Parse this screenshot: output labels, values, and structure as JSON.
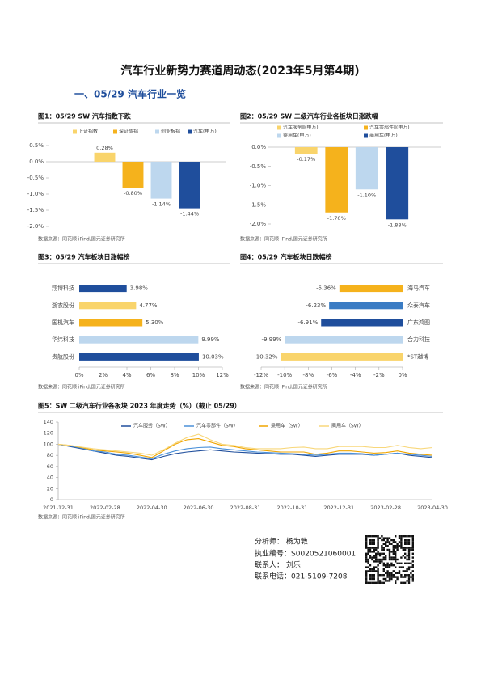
{
  "title": "汽车行业新势力赛道周动态(2023年5月第4期)",
  "section": "一、05/29 汽车行业一览",
  "chart_data": [
    {
      "type": "bar",
      "caption": "图1：05/29 SW 汽车指数下跌",
      "source": "数据来源：同花顺 iFind,国元证券研究所",
      "series": [
        {
          "name": "上证指数",
          "color": "#f9d46b",
          "values": [
            0.28
          ],
          "value_labels": [
            "0.28%"
          ]
        },
        {
          "name": "深证成指",
          "color": "#f5b21c",
          "values": [
            -0.8
          ],
          "value_labels": [
            "-0.80%"
          ]
        },
        {
          "name": "创业板指",
          "color": "#bdd7ee",
          "values": [
            -1.14
          ],
          "value_labels": [
            "-1.14%"
          ]
        },
        {
          "name": "汽车(申万)",
          "color": "#1f4e9c",
          "values": [
            -1.44
          ],
          "value_labels": [
            "-1.44%"
          ]
        }
      ],
      "ylim": [
        -2,
        0.5
      ],
      "yticks": [
        {
          "value": 0.5,
          "label": "0.5%"
        },
        {
          "value": 0,
          "label": "0.0%"
        },
        {
          "value": -0.5,
          "label": "-0.5%"
        },
        {
          "value": -1,
          "label": "-1.0%"
        },
        {
          "value": -1.5,
          "label": "-1.5%"
        },
        {
          "value": -2,
          "label": "-2.0%"
        }
      ]
    },
    {
      "type": "bar",
      "caption": "图2：05/29 SW 二级汽车行业各板块日涨跌幅",
      "source": "数据来源：同花顺 iFind,国元证券研究所",
      "series": [
        {
          "name": "汽车服务Ⅱ(申万)",
          "color": "#f9d46b",
          "values": [
            -0.17
          ],
          "value_labels": [
            "-0.17%"
          ]
        },
        {
          "name": "汽车零部件Ⅱ(申万)",
          "color": "#f5b21c",
          "values": [
            -1.7
          ],
          "value_labels": [
            "-1.70%"
          ]
        },
        {
          "name": "乘用车(申万)",
          "color": "#bdd7ee",
          "values": [
            -1.1
          ],
          "value_labels": [
            "-1.10%"
          ]
        },
        {
          "name": "商用车(申万)",
          "color": "#1f4e9c",
          "values": [
            -1.88
          ],
          "value_labels": [
            "-1.88%"
          ]
        }
      ],
      "ylim": [
        -2,
        0
      ],
      "yticks": [
        {
          "value": 0,
          "label": "0.0%"
        },
        {
          "value": -0.5,
          "label": "-0.5%"
        },
        {
          "value": -1,
          "label": "-1.0%"
        },
        {
          "value": -1.5,
          "label": "-1.5%"
        },
        {
          "value": -2,
          "label": "-2.0%"
        }
      ]
    },
    {
      "type": "hbar",
      "caption": "图3：05/29 汽车板块日涨幅榜",
      "source": "数据来源：同花顺 iFind,国元证券研究所",
      "categories": [
        "翔博科技",
        "浙农股份",
        "国机汽车",
        "华纬科技",
        "贵航股份"
      ],
      "values": [
        3.98,
        4.77,
        5.3,
        9.99,
        10.03
      ],
      "value_labels": [
        "3.98%",
        "4.77%",
        "5.30%",
        "9.99%",
        "10.03%"
      ],
      "colors": [
        "#1f4e9c",
        "#f9d46b",
        "#f5b21c",
        "#bdd7ee",
        "#1f4e9c"
      ],
      "xlim": [
        0,
        12
      ],
      "xticks": [
        {
          "value": 0,
          "label": "0%"
        },
        {
          "value": 2,
          "label": "2%"
        },
        {
          "value": 4,
          "label": "4%"
        },
        {
          "value": 6,
          "label": "6%"
        },
        {
          "value": 8,
          "label": "8%"
        },
        {
          "value": 10,
          "label": "10%"
        },
        {
          "value": 12,
          "label": "12%"
        }
      ]
    },
    {
      "type": "hbar",
      "caption": "图4：05/29 汽车板块日跌幅榜",
      "source": "数据来源：同花顺 iFind,国元证券研究所",
      "categories": [
        "海马汽车",
        "众泰汽车",
        "广东鸿图",
        "合力科技",
        "*ST越博"
      ],
      "values": [
        -5.36,
        -6.23,
        -6.91,
        -9.99,
        -10.32
      ],
      "value_labels": [
        "-5.36%",
        "-6.23%",
        "-6.91%",
        "-9.99%",
        "-10.32%"
      ],
      "colors": [
        "#f5b21c",
        "#3a7cc4",
        "#1f4e9c",
        "#bdd7ee",
        "#f9d46b"
      ],
      "xlim": [
        -12,
        0
      ],
      "xticks": [
        {
          "value": -12,
          "label": "-12%"
        },
        {
          "value": -10,
          "label": "-10%"
        },
        {
          "value": -8,
          "label": "-8%"
        },
        {
          "value": -6,
          "label": "-6%"
        },
        {
          "value": -4,
          "label": "-4%"
        },
        {
          "value": -2,
          "label": "-2%"
        },
        {
          "value": 0,
          "label": "0%"
        }
      ]
    },
    {
      "type": "line",
      "caption": "图5：SW 二级汽车行业各板块 2023 年度走势（%）（截止 05/29）",
      "source": "数据来源：同花顺 iFind,国元证券研究所",
      "categories": [
        "2021-12-31",
        null,
        null,
        null,
        "2022-02-28",
        null,
        null,
        null,
        "2022-04-30",
        null,
        null,
        null,
        "2022-06-30",
        null,
        null,
        null,
        "2022-08-31",
        null,
        null,
        null,
        "2022-10-31",
        null,
        null,
        null,
        "2022-12-31",
        null,
        null,
        null,
        "2023-02-28",
        null,
        null,
        null,
        "2023-04-30"
      ],
      "series": [
        {
          "name": "汽车服务（SW）",
          "color": "#1f4e9c",
          "values": [
            100,
            96,
            92,
            88,
            84,
            80,
            78,
            75,
            72,
            78,
            83,
            86,
            88,
            90,
            88,
            86,
            85,
            84,
            83,
            82,
            82,
            80,
            78,
            80,
            82,
            82,
            82,
            80,
            82,
            84,
            80,
            78,
            76
          ]
        },
        {
          "name": "汽车零部件（SW）",
          "color": "#4a90d9",
          "values": [
            100,
            97,
            93,
            88,
            86,
            82,
            80,
            77,
            74,
            82,
            88,
            92,
            94,
            95,
            92,
            90,
            88,
            86,
            85,
            84,
            83,
            82,
            80,
            82,
            84,
            84,
            83,
            80,
            82,
            84,
            82,
            80,
            78
          ]
        },
        {
          "name": "乘用车（SW）",
          "color": "#f0a500",
          "values": [
            100,
            98,
            94,
            90,
            88,
            86,
            84,
            80,
            76,
            88,
            100,
            108,
            110,
            104,
            98,
            96,
            92,
            90,
            88,
            86,
            86,
            86,
            82,
            84,
            88,
            88,
            86,
            84,
            85,
            88,
            84,
            82,
            80
          ]
        },
        {
          "name": "商用车（SW）",
          "color": "#f8d77a",
          "values": [
            100,
            98,
            95,
            92,
            90,
            88,
            86,
            84,
            80,
            90,
            102,
            112,
            118,
            108,
            100,
            98,
            94,
            92,
            92,
            92,
            94,
            95,
            92,
            92,
            96,
            96,
            96,
            94,
            94,
            98,
            94,
            92,
            94
          ]
        }
      ],
      "ylim": [
        0,
        140
      ],
      "yticks": [
        0,
        20,
        40,
        60,
        80,
        100,
        120,
        140
      ]
    }
  ],
  "contact": {
    "analyst": "分析师：  杨为敩",
    "license": "执业编号：S0020521060001",
    "person": "联系人：  刘乐",
    "phone": "联系电话：021-5109-7208"
  }
}
